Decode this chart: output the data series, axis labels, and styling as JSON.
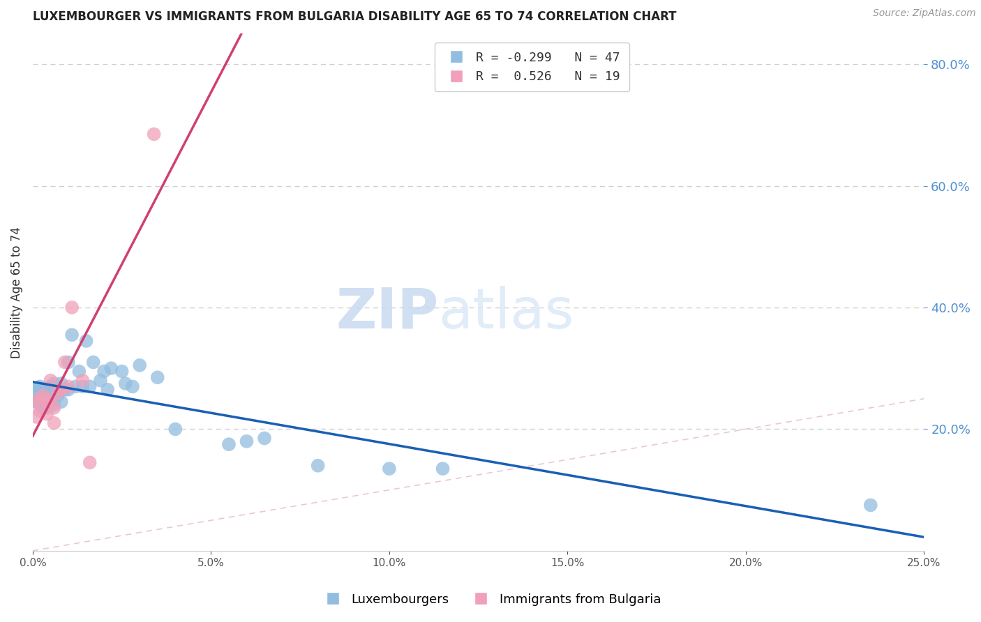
{
  "title": "LUXEMBOURGER VS IMMIGRANTS FROM BULGARIA DISABILITY AGE 65 TO 74 CORRELATION CHART",
  "source": "Source: ZipAtlas.com",
  "ylabel": "Disability Age 65 to 74",
  "xlim": [
    0.0,
    0.25
  ],
  "ylim": [
    0.0,
    0.85
  ],
  "xticks": [
    0.0,
    0.05,
    0.1,
    0.15,
    0.2,
    0.25
  ],
  "yticks_right": [
    0.2,
    0.4,
    0.6,
    0.8
  ],
  "lux_x": [
    0.001,
    0.001,
    0.001,
    0.002,
    0.002,
    0.002,
    0.003,
    0.003,
    0.003,
    0.004,
    0.004,
    0.004,
    0.005,
    0.005,
    0.006,
    0.006,
    0.006,
    0.007,
    0.008,
    0.008,
    0.009,
    0.01,
    0.01,
    0.011,
    0.012,
    0.013,
    0.014,
    0.015,
    0.016,
    0.017,
    0.019,
    0.02,
    0.021,
    0.022,
    0.025,
    0.026,
    0.028,
    0.03,
    0.035,
    0.04,
    0.055,
    0.06,
    0.065,
    0.08,
    0.1,
    0.115,
    0.235
  ],
  "lux_y": [
    0.265,
    0.26,
    0.245,
    0.27,
    0.255,
    0.24,
    0.265,
    0.25,
    0.235,
    0.26,
    0.245,
    0.235,
    0.27,
    0.245,
    0.275,
    0.26,
    0.24,
    0.255,
    0.275,
    0.245,
    0.265,
    0.31,
    0.265,
    0.355,
    0.27,
    0.295,
    0.27,
    0.345,
    0.27,
    0.31,
    0.28,
    0.295,
    0.265,
    0.3,
    0.295,
    0.275,
    0.27,
    0.305,
    0.285,
    0.2,
    0.175,
    0.18,
    0.185,
    0.14,
    0.135,
    0.135,
    0.075
  ],
  "bul_x": [
    0.001,
    0.001,
    0.002,
    0.002,
    0.003,
    0.004,
    0.004,
    0.005,
    0.005,
    0.006,
    0.006,
    0.007,
    0.008,
    0.009,
    0.01,
    0.011,
    0.014,
    0.016,
    0.034
  ],
  "bul_y": [
    0.245,
    0.22,
    0.25,
    0.23,
    0.255,
    0.245,
    0.225,
    0.28,
    0.245,
    0.235,
    0.21,
    0.26,
    0.265,
    0.31,
    0.27,
    0.4,
    0.28,
    0.145,
    0.685
  ],
  "lux_color": "#92bde0",
  "bul_color": "#f0a0b8",
  "lux_line_color": "#1a5fb4",
  "bul_line_color": "#d04070",
  "lux_line_x": [
    0.0,
    0.25
  ],
  "bul_line_x": [
    0.0,
    0.07
  ],
  "diag_color": "#e8c8d0",
  "background_color": "#ffffff",
  "grid_color": "#d0d0d0",
  "watermark_zip": "ZIP",
  "watermark_atlas": "atlas",
  "right_axis_color": "#5090d0"
}
